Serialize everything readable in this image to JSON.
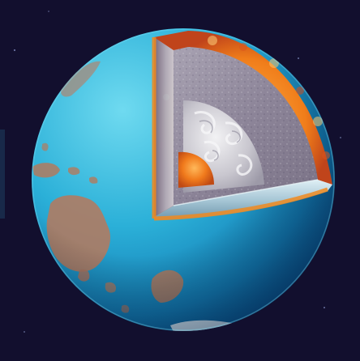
{
  "scene": {
    "subject": "planet-earth-cutaway",
    "colors": {
      "space": "#120f2e",
      "ocean_light": "#5fd0ec",
      "ocean_mid": "#1f9fcd",
      "ocean_dark": "#0a4f86",
      "land": "#b27a5e",
      "crust": "#f08a1e",
      "mantle": "#8a8296",
      "outer_core": "#c8c6cc",
      "inner_core": "#e4641c"
    }
  }
}
